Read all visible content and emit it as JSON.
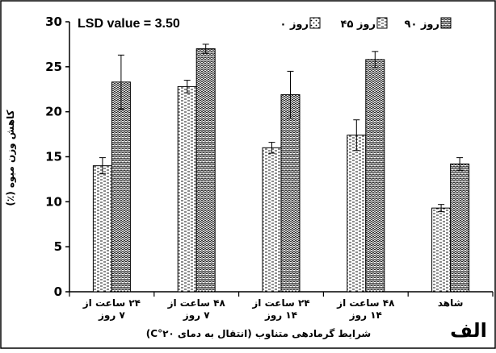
{
  "chart_data": {
    "type": "bar",
    "annotation": "LSD value = 3.50",
    "ylabel": "کاهش وزن میوه (٪)",
    "xlabel": "شرایط گرمادهی متناوب (انتقال به دمای ۲۰°C)",
    "panel_label": "الف",
    "ylim": [
      0,
      30
    ],
    "yticks": [
      0,
      5,
      10,
      15,
      20,
      25,
      30
    ],
    "legend_position": "top-right",
    "categories": [
      {
        "line1": "۲۴ ساعت از",
        "line2": "۷ روز"
      },
      {
        "line1": "۴۸ ساعت از",
        "line2": "۷ روز"
      },
      {
        "line1": "۲۴ ساعت از",
        "line2": "۱۴ روز"
      },
      {
        "line1": "۴۸ ساعت از",
        "line2": "۱۴ روز"
      },
      {
        "line1": "شاهد",
        "line2": ""
      }
    ],
    "series": [
      {
        "name": "روز ۰",
        "values": [
          0,
          0,
          0,
          0,
          0
        ],
        "errors": [
          0,
          0,
          0,
          0,
          0
        ],
        "pattern": "dots"
      },
      {
        "name": "روز ۴۵",
        "values": [
          14.0,
          22.8,
          16.0,
          17.4,
          9.3
        ],
        "errors": [
          0.9,
          0.7,
          0.6,
          1.7,
          0.4
        ],
        "pattern": "dash"
      },
      {
        "name": "روز ۹۰",
        "values": [
          23.3,
          27.0,
          21.9,
          25.8,
          14.2
        ],
        "errors": [
          3.0,
          0.5,
          2.6,
          0.9,
          0.7
        ],
        "pattern": "wave"
      }
    ]
  }
}
